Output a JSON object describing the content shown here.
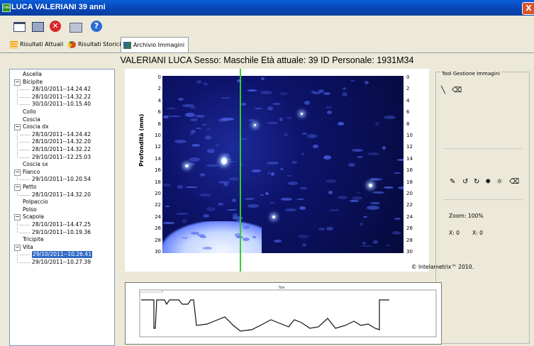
{
  "window": {
    "title": "LUCA VALERIANI 39 anni",
    "app_icon": "nwi",
    "close_glyph": "X"
  },
  "toolbar": {
    "buttons": [
      "window-icon",
      "window-dark-icon",
      "close-red-icon",
      "print-icon",
      "help-icon"
    ]
  },
  "tabs": [
    {
      "label": "Risultati Attuali",
      "active": false,
      "color": "#f2a000"
    },
    {
      "label": "Risultati Storici",
      "active": false,
      "color": "#d94b1e"
    },
    {
      "label": "Archivio Immagini",
      "active": true,
      "color": "#3c7f3c"
    }
  ],
  "patient": {
    "line": "VALERIANI LUCA  Sesso: Maschile  Età attuale: 39  ID Personale: 1931M34"
  },
  "tree": [
    {
      "label": "Ascella",
      "level": 0,
      "expander": ""
    },
    {
      "label": "Bicipite",
      "level": 0,
      "expander": "−"
    },
    {
      "label": "28/10/2011--14.24.42",
      "level": 1,
      "expander": ""
    },
    {
      "label": "28/10/2011--14.32.22",
      "level": 1,
      "expander": ""
    },
    {
      "label": "30/10/2011--10.15.40",
      "level": 1,
      "expander": ""
    },
    {
      "label": "Collo",
      "level": 0,
      "expander": ""
    },
    {
      "label": "Coscia",
      "level": 0,
      "expander": ""
    },
    {
      "label": "Coscia dx",
      "level": 0,
      "expander": "−"
    },
    {
      "label": "28/10/2011--14.24.42",
      "level": 1,
      "expander": ""
    },
    {
      "label": "28/10/2011--14.32.20",
      "level": 1,
      "expander": ""
    },
    {
      "label": "28/10/2011--14.32.22",
      "level": 1,
      "expander": ""
    },
    {
      "label": "29/10/2011--12.25.03",
      "level": 1,
      "expander": ""
    },
    {
      "label": "Coscia sx",
      "level": 0,
      "expander": ""
    },
    {
      "label": "Fianco",
      "level": 0,
      "expander": "−"
    },
    {
      "label": "29/10/2011--10.20.54",
      "level": 1,
      "expander": ""
    },
    {
      "label": "Petto",
      "level": 0,
      "expander": "−"
    },
    {
      "label": "28/10/2011--14.32.20",
      "level": 1,
      "expander": ""
    },
    {
      "label": "Polpaccio",
      "level": 0,
      "expander": ""
    },
    {
      "label": "Polso",
      "level": 0,
      "expander": ""
    },
    {
      "label": "Scapola",
      "level": 0,
      "expander": "−"
    },
    {
      "label": "28/10/2011--14.47.25",
      "level": 1,
      "expander": ""
    },
    {
      "label": "29/10/2011--10.19.36",
      "level": 1,
      "expander": ""
    },
    {
      "label": "Tricipite",
      "level": 0,
      "expander": ""
    },
    {
      "label": "Vita",
      "level": 0,
      "expander": "−"
    },
    {
      "label": "29/10/2011--10.26.41",
      "level": 1,
      "expander": "",
      "selected": true
    },
    {
      "label": "29/10/2011--10.27.39",
      "level": 1,
      "expander": ""
    }
  ],
  "image": {
    "y_axis_label": "Profondità (mm)",
    "ticks": [
      "0",
      "2",
      "4",
      "6",
      "8",
      "10",
      "12",
      "14",
      "16",
      "18",
      "20",
      "22",
      "24",
      "26",
      "28",
      "30"
    ],
    "copyright": "© Intelametrix™ 2010.",
    "colormap": [
      "#050a3c",
      "#1d2a9a",
      "#ffffff"
    ]
  },
  "tools": {
    "title": "Tool Gestione Immagini",
    "zoom_label": "Zoom:  100%",
    "x_label": "X: 0",
    "x2_label": "X: 0",
    "icons_top": [
      "line-tool-icon",
      "eraser-icon"
    ],
    "icons_mid": [
      "pen-icon",
      "rotate-left-icon",
      "rotate-right-icon",
      "contrast-icon",
      "brightness-icon",
      "eraser-icon"
    ]
  },
  "graph": {
    "title": "Title"
  }
}
